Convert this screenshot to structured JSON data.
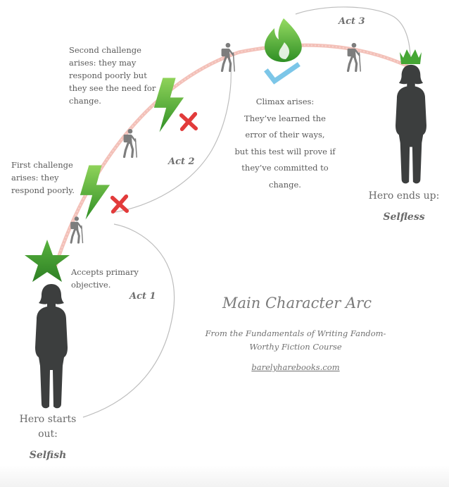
{
  "title": "Main Character Arc",
  "subtitle_line1": "From the Fundamentals of Writing Fandom-",
  "subtitle_line2": "Worthy Fiction Course",
  "website": "barelyharebooks.com",
  "acts": {
    "act1": "Act 1",
    "act2": "Act 2",
    "act3": "Act 3"
  },
  "hero_start": {
    "line1": "Hero starts",
    "line2": "out:",
    "trait": "Selfish"
  },
  "hero_end": {
    "line1": "Hero ends up:",
    "trait": "Selfless"
  },
  "notes": {
    "primary": [
      "Accepts primary",
      "objective."
    ],
    "first": [
      "First challenge",
      "arises: they",
      "respond poorly."
    ],
    "second": [
      "Second challenge",
      "arises: they may",
      "respond poorly but",
      "they see the need for",
      "change."
    ],
    "climax": [
      "Climax arises:",
      "They’ve learned the",
      "error of  their ways,",
      "but this test will prove if",
      "they’ve committed to",
      "change."
    ]
  },
  "colors": {
    "arc": "#f2b9b0",
    "connector": "#bdbdbd",
    "silhouette": "#3c3e3e",
    "hiker": "#7d7d7d",
    "bolt": "#4aa832",
    "star": "#3f9c2f",
    "fire": "#52b13a",
    "cross": "#e23b3b",
    "check": "#7cc6e8",
    "crown": "#45a634"
  },
  "icons": [
    "star-icon",
    "lightning-bolt-icon",
    "cross-icon",
    "hiker-icon",
    "fire-icon",
    "check-icon",
    "crown-icon",
    "person-silhouette-icon"
  ]
}
